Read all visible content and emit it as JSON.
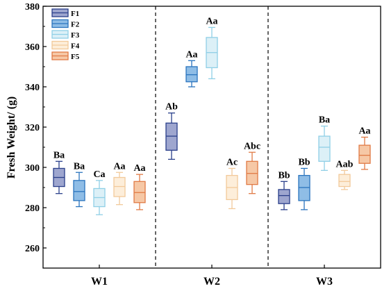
{
  "chart_data": {
    "type": "box",
    "ylabel": "Fresh Weight/ (g)",
    "xlabel": "",
    "ylim": [
      250,
      380
    ],
    "yticks": [
      260,
      280,
      300,
      320,
      340,
      360,
      380
    ],
    "categories": [
      "W1",
      "W2",
      "W3"
    ],
    "grid": false,
    "legend_position": "top-left",
    "series": [
      {
        "name": "F1",
        "color": "#2a3f8a",
        "fill": "#9ea6cf",
        "boxes": [
          {
            "min": 287,
            "q1": 290.5,
            "median": 295,
            "q3": 299.5,
            "max": 303,
            "label": "Ba"
          },
          {
            "min": 304,
            "q1": 308.5,
            "median": 315.5,
            "q3": 322,
            "max": 327,
            "label": "Ab"
          },
          {
            "min": 279,
            "q1": 282,
            "median": 286,
            "q3": 289,
            "max": 293,
            "label": "Bb"
          }
        ]
      },
      {
        "name": "F2",
        "color": "#2a74be",
        "fill": "#8fbde6",
        "boxes": [
          {
            "min": 280.5,
            "q1": 283.5,
            "median": 288,
            "q3": 293.5,
            "max": 297.5,
            "label": "Ba"
          },
          {
            "min": 340,
            "q1": 342.5,
            "median": 346,
            "q3": 350,
            "max": 353,
            "label": "Aa"
          },
          {
            "min": 279,
            "q1": 283.5,
            "median": 290,
            "q3": 296,
            "max": 299.5,
            "label": "Bb"
          }
        ]
      },
      {
        "name": "F3",
        "color": "#8fcfe6",
        "fill": "#dcf0f7",
        "boxes": [
          {
            "min": 276.5,
            "q1": 280.5,
            "median": 285,
            "q3": 289.5,
            "max": 293.5,
            "label": "Ca"
          },
          {
            "min": 344,
            "q1": 349.5,
            "median": 357,
            "q3": 364.5,
            "max": 369.5,
            "label": "Aa"
          },
          {
            "min": 298.5,
            "q1": 303,
            "median": 310,
            "q3": 315.5,
            "max": 320.5,
            "label": "Ba"
          }
        ]
      },
      {
        "name": "F4",
        "color": "#f2c99a",
        "fill": "#fdeeda",
        "boxes": [
          {
            "min": 281.5,
            "q1": 285.5,
            "median": 290.5,
            "q3": 295,
            "max": 297.5,
            "label": "Aa"
          },
          {
            "min": 279.5,
            "q1": 284,
            "median": 290,
            "q3": 296,
            "max": 299.5,
            "label": "Ac"
          },
          {
            "min": 289,
            "q1": 290.5,
            "median": 293,
            "q3": 296.5,
            "max": 298.5,
            "label": "Aab"
          }
        ]
      },
      {
        "name": "F5",
        "color": "#e07a45",
        "fill": "#f6c8a6",
        "boxes": [
          {
            "min": 279,
            "q1": 282.5,
            "median": 287.5,
            "q3": 293,
            "max": 296.5,
            "label": "Aa"
          },
          {
            "min": 287,
            "q1": 291.5,
            "median": 297,
            "q3": 303,
            "max": 307.5,
            "label": "Abc"
          },
          {
            "min": 299,
            "q1": 302,
            "median": 306,
            "q3": 311,
            "max": 315,
            "label": "Aa"
          }
        ]
      }
    ]
  }
}
